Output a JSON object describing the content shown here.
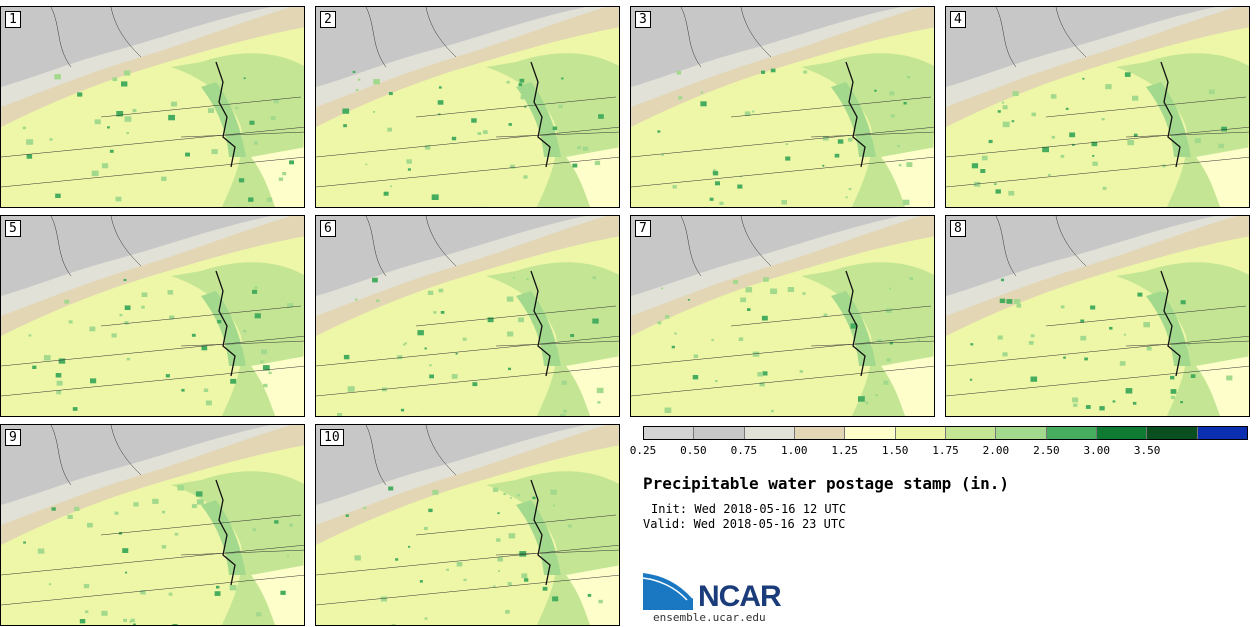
{
  "panels": [
    {
      "label": "1"
    },
    {
      "label": "2"
    },
    {
      "label": "3"
    },
    {
      "label": "4"
    },
    {
      "label": "5"
    },
    {
      "label": "6"
    },
    {
      "label": "7"
    },
    {
      "label": "8"
    },
    {
      "label": "9"
    },
    {
      "label": "10"
    }
  ],
  "colorbar": {
    "colors": [
      "#d3d3d3",
      "#c7c7c7",
      "#e1e1d8",
      "#e3d6b4",
      "#fefecb",
      "#eef7a8",
      "#c4e694",
      "#a3d98c",
      "#46ad5e",
      "#0e7a32",
      "#0a4f1f",
      "#0b2fb0"
    ],
    "ticks": [
      "0.25",
      "0.50",
      "0.75",
      "1.00",
      "1.25",
      "1.50",
      "1.75",
      "2.00",
      "2.50",
      "3.00",
      "3.50"
    ]
  },
  "title": "Precipitable water postage stamp (in.)",
  "init": "Init: Wed 2018-05-16 12 UTC",
  "valid": "Valid: Wed 2018-05-16 23 UTC",
  "logo": {
    "text": "NCAR",
    "url": "ensemble.ucar.edu"
  }
}
